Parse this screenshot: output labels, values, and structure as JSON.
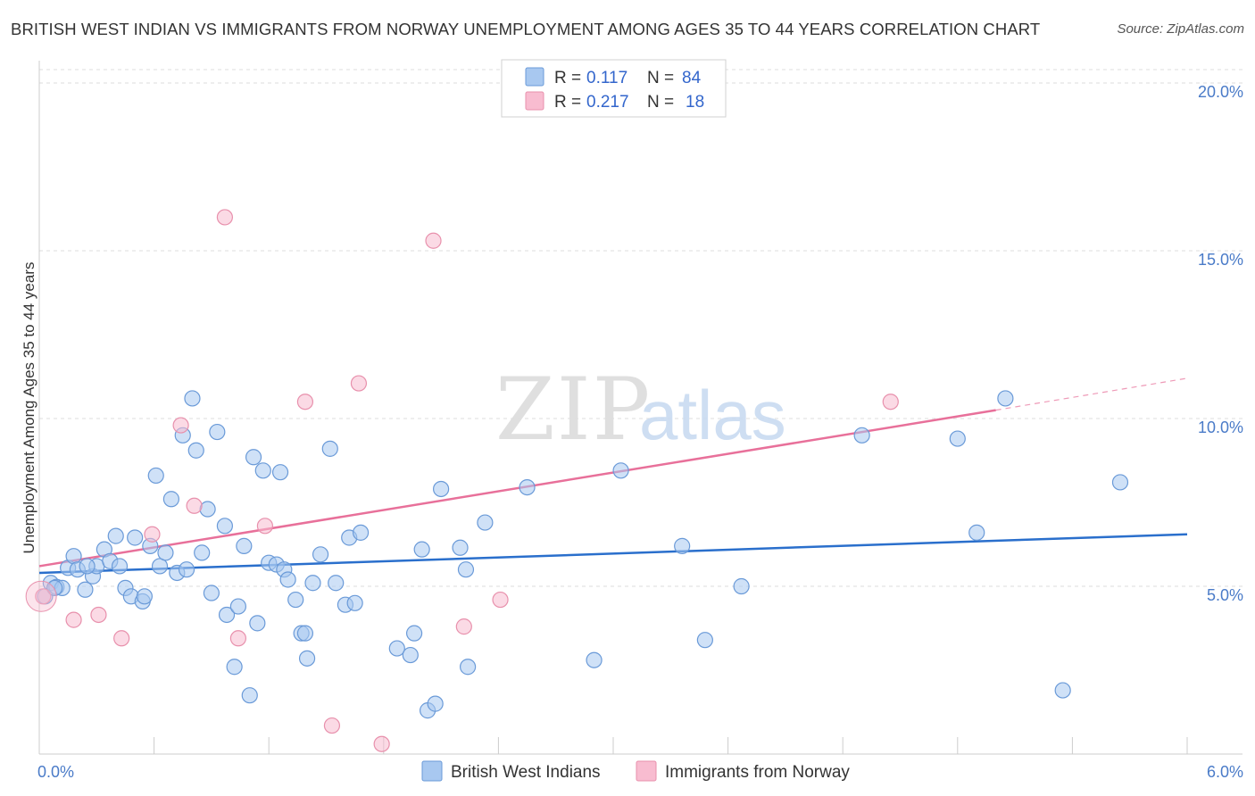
{
  "title": "BRITISH WEST INDIAN VS IMMIGRANTS FROM NORWAY UNEMPLOYMENT AMONG AGES 35 TO 44 YEARS CORRELATION CHART",
  "source": "Source: ZipAtlas.com",
  "watermark": {
    "zip": "ZIP",
    "atlas": "atlas"
  },
  "legend": {
    "rows": [
      {
        "r_label": "R =",
        "r_value": "0.117",
        "n_label": "N =",
        "n_value": "84",
        "color": "#a8c8f0",
        "stroke": "#6a9ad8"
      },
      {
        "r_label": "R =",
        "r_value": "0.217",
        "n_label": "N =",
        "n_value": "18",
        "color": "#f8bcd0",
        "stroke": "#e890ac"
      }
    ]
  },
  "bottom_legend": [
    {
      "label": "British West Indians",
      "color": "#a8c8f0",
      "stroke": "#6a9ad8"
    },
    {
      "label": "Immigrants from Norway",
      "color": "#f8bcd0",
      "stroke": "#e890ac"
    }
  ],
  "chart_data": {
    "type": "scatter",
    "title": "BRITISH WEST INDIAN VS IMMIGRANTS FROM NORWAY UNEMPLOYMENT AMONG AGES 35 TO 44 YEARS CORRELATION CHART",
    "xlabel": "",
    "ylabel": "Unemployment Among Ages 35 to 44 years",
    "xlim": [
      0,
      6
    ],
    "ylim": [
      0,
      20
    ],
    "x_ticks": [
      {
        "value": 0,
        "label": "0.0%"
      },
      {
        "value": 6,
        "label": "6.0%"
      }
    ],
    "y_ticks": [
      {
        "value": 5,
        "label": "5.0%"
      },
      {
        "value": 10,
        "label": "10.0%"
      },
      {
        "value": 15,
        "label": "15.0%"
      },
      {
        "value": 20,
        "label": "20.0%"
      }
    ],
    "grid": "horizontal dashed",
    "legend_position": "top-center",
    "series": [
      {
        "name": "British West Indians",
        "color": "#a8c8f0",
        "stroke": "#6a9ad8",
        "line_color": "#2a6fcc",
        "trend": {
          "x": [
            0,
            6
          ],
          "y": [
            5.4,
            6.55
          ]
        },
        "points": [
          [
            0.03,
            4.7
          ],
          [
            0.06,
            5.1
          ],
          [
            0.09,
            4.98
          ],
          [
            0.12,
            4.95
          ],
          [
            0.15,
            5.55
          ],
          [
            0.18,
            5.9
          ],
          [
            0.2,
            5.5
          ],
          [
            0.24,
            4.9
          ],
          [
            0.28,
            5.3
          ],
          [
            0.3,
            5.6
          ],
          [
            0.34,
            6.1
          ],
          [
            0.37,
            5.75
          ],
          [
            0.4,
            6.5
          ],
          [
            0.42,
            5.6
          ],
          [
            0.45,
            4.95
          ],
          [
            0.48,
            4.7
          ],
          [
            0.5,
            6.45
          ],
          [
            0.54,
            4.55
          ],
          [
            0.55,
            4.7
          ],
          [
            0.58,
            6.2
          ],
          [
            0.61,
            8.3
          ],
          [
            0.63,
            5.6
          ],
          [
            0.66,
            6.0
          ],
          [
            0.69,
            7.6
          ],
          [
            0.72,
            5.4
          ],
          [
            0.75,
            9.5
          ],
          [
            0.77,
            5.5
          ],
          [
            0.8,
            10.6
          ],
          [
            0.82,
            9.05
          ],
          [
            0.85,
            6.0
          ],
          [
            0.88,
            7.3
          ],
          [
            0.9,
            4.8
          ],
          [
            0.93,
            9.6
          ],
          [
            0.97,
            6.8
          ],
          [
            0.98,
            4.15
          ],
          [
            1.02,
            2.6
          ],
          [
            1.04,
            4.4
          ],
          [
            1.07,
            6.2
          ],
          [
            1.1,
            1.75
          ],
          [
            1.12,
            8.85
          ],
          [
            1.14,
            3.9
          ],
          [
            1.17,
            8.45
          ],
          [
            1.2,
            5.7
          ],
          [
            1.24,
            5.65
          ],
          [
            1.26,
            8.4
          ],
          [
            1.28,
            5.5
          ],
          [
            1.3,
            5.2
          ],
          [
            1.34,
            4.6
          ],
          [
            1.37,
            3.6
          ],
          [
            1.39,
            3.6
          ],
          [
            1.4,
            2.85
          ],
          [
            1.43,
            5.1
          ],
          [
            1.47,
            5.95
          ],
          [
            1.52,
            9.1
          ],
          [
            1.55,
            5.1
          ],
          [
            1.6,
            4.45
          ],
          [
            1.62,
            6.45
          ],
          [
            1.65,
            4.5
          ],
          [
            1.68,
            6.6
          ],
          [
            1.87,
            3.15
          ],
          [
            1.94,
            2.95
          ],
          [
            1.96,
            3.6
          ],
          [
            2.0,
            6.1
          ],
          [
            2.03,
            1.3
          ],
          [
            2.07,
            1.5
          ],
          [
            2.1,
            7.9
          ],
          [
            2.2,
            6.15
          ],
          [
            2.23,
            5.5
          ],
          [
            2.24,
            2.6
          ],
          [
            2.33,
            6.9
          ],
          [
            2.55,
            7.95
          ],
          [
            2.9,
            2.8
          ],
          [
            3.04,
            8.45
          ],
          [
            3.36,
            6.2
          ],
          [
            3.48,
            3.4
          ],
          [
            3.67,
            5.0
          ],
          [
            4.3,
            9.5
          ],
          [
            4.8,
            9.4
          ],
          [
            4.9,
            6.6
          ],
          [
            5.05,
            10.6
          ],
          [
            5.35,
            1.9
          ],
          [
            5.65,
            8.1
          ],
          [
            0.08,
            4.95
          ],
          [
            0.25,
            5.6
          ]
        ]
      },
      {
        "name": "Immigrants from Norway",
        "color": "#f8bcd0",
        "stroke": "#e890ac",
        "line_color": "#e8709a",
        "trend": {
          "x": [
            0,
            5.0
          ],
          "y": [
            5.6,
            10.25
          ]
        },
        "trend_dashed": {
          "x": [
            5.0,
            6.0
          ],
          "y": [
            10.25,
            11.2
          ]
        },
        "points": [
          [
            0.02,
            4.7
          ],
          [
            0.18,
            4.0
          ],
          [
            0.31,
            4.15
          ],
          [
            0.43,
            3.45
          ],
          [
            0.59,
            6.55
          ],
          [
            0.74,
            9.8
          ],
          [
            0.81,
            7.4
          ],
          [
            0.97,
            16.0
          ],
          [
            1.04,
            3.45
          ],
          [
            1.18,
            6.8
          ],
          [
            1.39,
            10.5
          ],
          [
            1.53,
            0.85
          ],
          [
            1.67,
            11.05
          ],
          [
            1.79,
            0.3
          ],
          [
            2.06,
            15.3
          ],
          [
            2.22,
            3.8
          ],
          [
            2.41,
            4.6
          ],
          [
            4.45,
            10.5
          ]
        ]
      }
    ]
  }
}
